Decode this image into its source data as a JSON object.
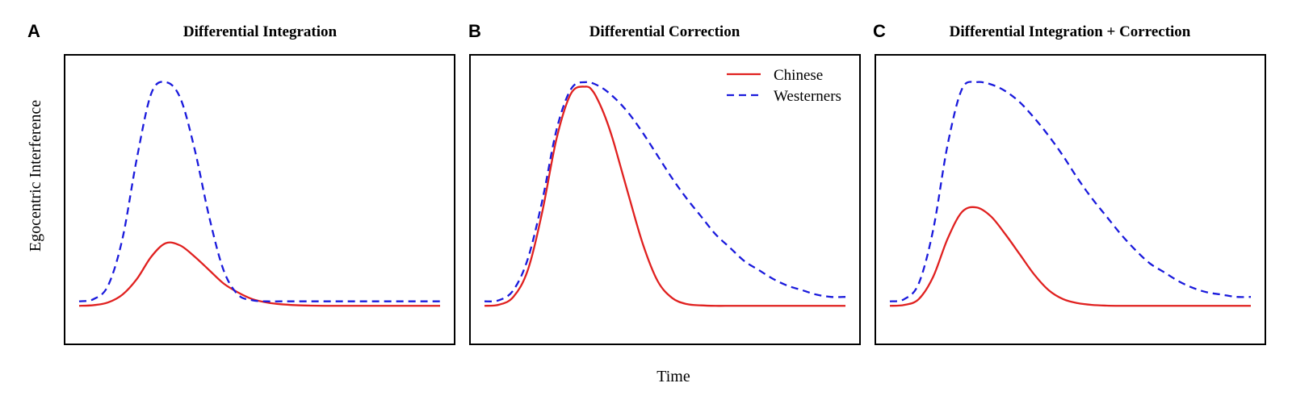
{
  "figure": {
    "xlabel": "Time",
    "ylabel": "Egocentric Interference"
  },
  "legend": {
    "location": "top-right of panel B",
    "items": [
      {
        "label": "Chinese",
        "color": "#e0201f",
        "style": "solid"
      },
      {
        "label": "Westerners",
        "color": "#1a1adc",
        "style": "dashed"
      }
    ]
  },
  "chart_data": [
    {
      "type": "line",
      "panel": "A",
      "title": "Differential Integration",
      "xlabel": "",
      "ylabel": "",
      "xlim": [
        0,
        100
      ],
      "ylim": [
        -0.1,
        1.05
      ],
      "grid": false,
      "series": [
        {
          "name": "Chinese",
          "color": "#e0201f",
          "style": "solid",
          "x": [
            0,
            4,
            8,
            12,
            16,
            20,
            24,
            28,
            32,
            36,
            40,
            44,
            48,
            52,
            56,
            60,
            64,
            68,
            72,
            76,
            80,
            84,
            88,
            92,
            96,
            100
          ],
          "y": [
            0.0,
            0.003,
            0.015,
            0.05,
            0.12,
            0.22,
            0.28,
            0.27,
            0.22,
            0.16,
            0.1,
            0.06,
            0.03,
            0.015,
            0.007,
            0.003,
            0.001,
            0.0,
            0.0,
            0.0,
            0.0,
            0.0,
            0.0,
            0.0,
            0.0,
            0.0
          ]
        },
        {
          "name": "Westerners",
          "color": "#1a1adc",
          "style": "dashed",
          "x": [
            0,
            4,
            8,
            12,
            16,
            20,
            24,
            28,
            32,
            36,
            40,
            44,
            48,
            52,
            56,
            60,
            64,
            68,
            72,
            76,
            80,
            84,
            88,
            92,
            96,
            100
          ],
          "y": [
            0.02,
            0.03,
            0.09,
            0.3,
            0.66,
            0.95,
            1.0,
            0.93,
            0.7,
            0.4,
            0.16,
            0.05,
            0.025,
            0.02,
            0.02,
            0.02,
            0.02,
            0.02,
            0.02,
            0.02,
            0.02,
            0.02,
            0.02,
            0.02,
            0.02,
            0.02
          ]
        }
      ]
    },
    {
      "type": "line",
      "panel": "B",
      "title": "Differential Correction",
      "xlabel": "",
      "ylabel": "",
      "xlim": [
        0,
        100
      ],
      "ylim": [
        -0.1,
        1.05
      ],
      "grid": false,
      "series": [
        {
          "name": "Chinese",
          "color": "#e0201f",
          "style": "solid",
          "x": [
            0,
            4,
            8,
            12,
            16,
            20,
            24,
            28,
            30,
            32,
            34,
            36,
            40,
            44,
            48,
            52,
            56,
            60,
            64,
            68,
            72,
            76,
            80,
            84,
            88,
            92,
            96,
            100
          ],
          "y": [
            0.0,
            0.005,
            0.04,
            0.16,
            0.42,
            0.75,
            0.95,
            0.98,
            0.96,
            0.9,
            0.82,
            0.72,
            0.49,
            0.27,
            0.11,
            0.035,
            0.008,
            0.002,
            0.0,
            0.0,
            0.0,
            0.0,
            0.0,
            0.0,
            0.0,
            0.0,
            0.0,
            0.0
          ]
        },
        {
          "name": "Westerners",
          "color": "#1a1adc",
          "style": "dashed",
          "x": [
            0,
            4,
            8,
            12,
            16,
            20,
            24,
            28,
            32,
            36,
            40,
            44,
            48,
            52,
            56,
            60,
            64,
            68,
            72,
            76,
            80,
            84,
            88,
            92,
            96,
            100
          ],
          "y": [
            0.02,
            0.025,
            0.07,
            0.21,
            0.47,
            0.79,
            0.97,
            1.0,
            0.98,
            0.93,
            0.86,
            0.77,
            0.67,
            0.57,
            0.48,
            0.4,
            0.32,
            0.26,
            0.2,
            0.16,
            0.12,
            0.09,
            0.07,
            0.05,
            0.04,
            0.04
          ]
        }
      ]
    },
    {
      "type": "line",
      "panel": "C",
      "title": "Differential Integration + Correction",
      "xlabel": "",
      "ylabel": "",
      "xlim": [
        0,
        100
      ],
      "ylim": [
        -0.1,
        1.05
      ],
      "grid": false,
      "series": [
        {
          "name": "Chinese",
          "color": "#e0201f",
          "style": "solid",
          "x": [
            0,
            4,
            8,
            12,
            16,
            20,
            24,
            28,
            32,
            36,
            40,
            44,
            48,
            52,
            56,
            60,
            64,
            68,
            72,
            76,
            80,
            84,
            88,
            92,
            96,
            100
          ],
          "y": [
            0.0,
            0.004,
            0.03,
            0.13,
            0.3,
            0.42,
            0.44,
            0.4,
            0.32,
            0.23,
            0.14,
            0.07,
            0.03,
            0.012,
            0.004,
            0.001,
            0.0,
            0.0,
            0.0,
            0.0,
            0.0,
            0.0,
            0.0,
            0.0,
            0.0,
            0.0
          ]
        },
        {
          "name": "Westerners",
          "color": "#1a1adc",
          "style": "dashed",
          "x": [
            0,
            4,
            8,
            12,
            16,
            20,
            24,
            28,
            32,
            36,
            40,
            44,
            48,
            52,
            56,
            60,
            64,
            68,
            72,
            76,
            80,
            84,
            88,
            92,
            96,
            100
          ],
          "y": [
            0.02,
            0.03,
            0.1,
            0.34,
            0.72,
            0.97,
            1.0,
            0.99,
            0.96,
            0.91,
            0.84,
            0.76,
            0.67,
            0.57,
            0.48,
            0.4,
            0.32,
            0.25,
            0.19,
            0.15,
            0.11,
            0.08,
            0.06,
            0.05,
            0.04,
            0.04
          ]
        }
      ]
    }
  ]
}
